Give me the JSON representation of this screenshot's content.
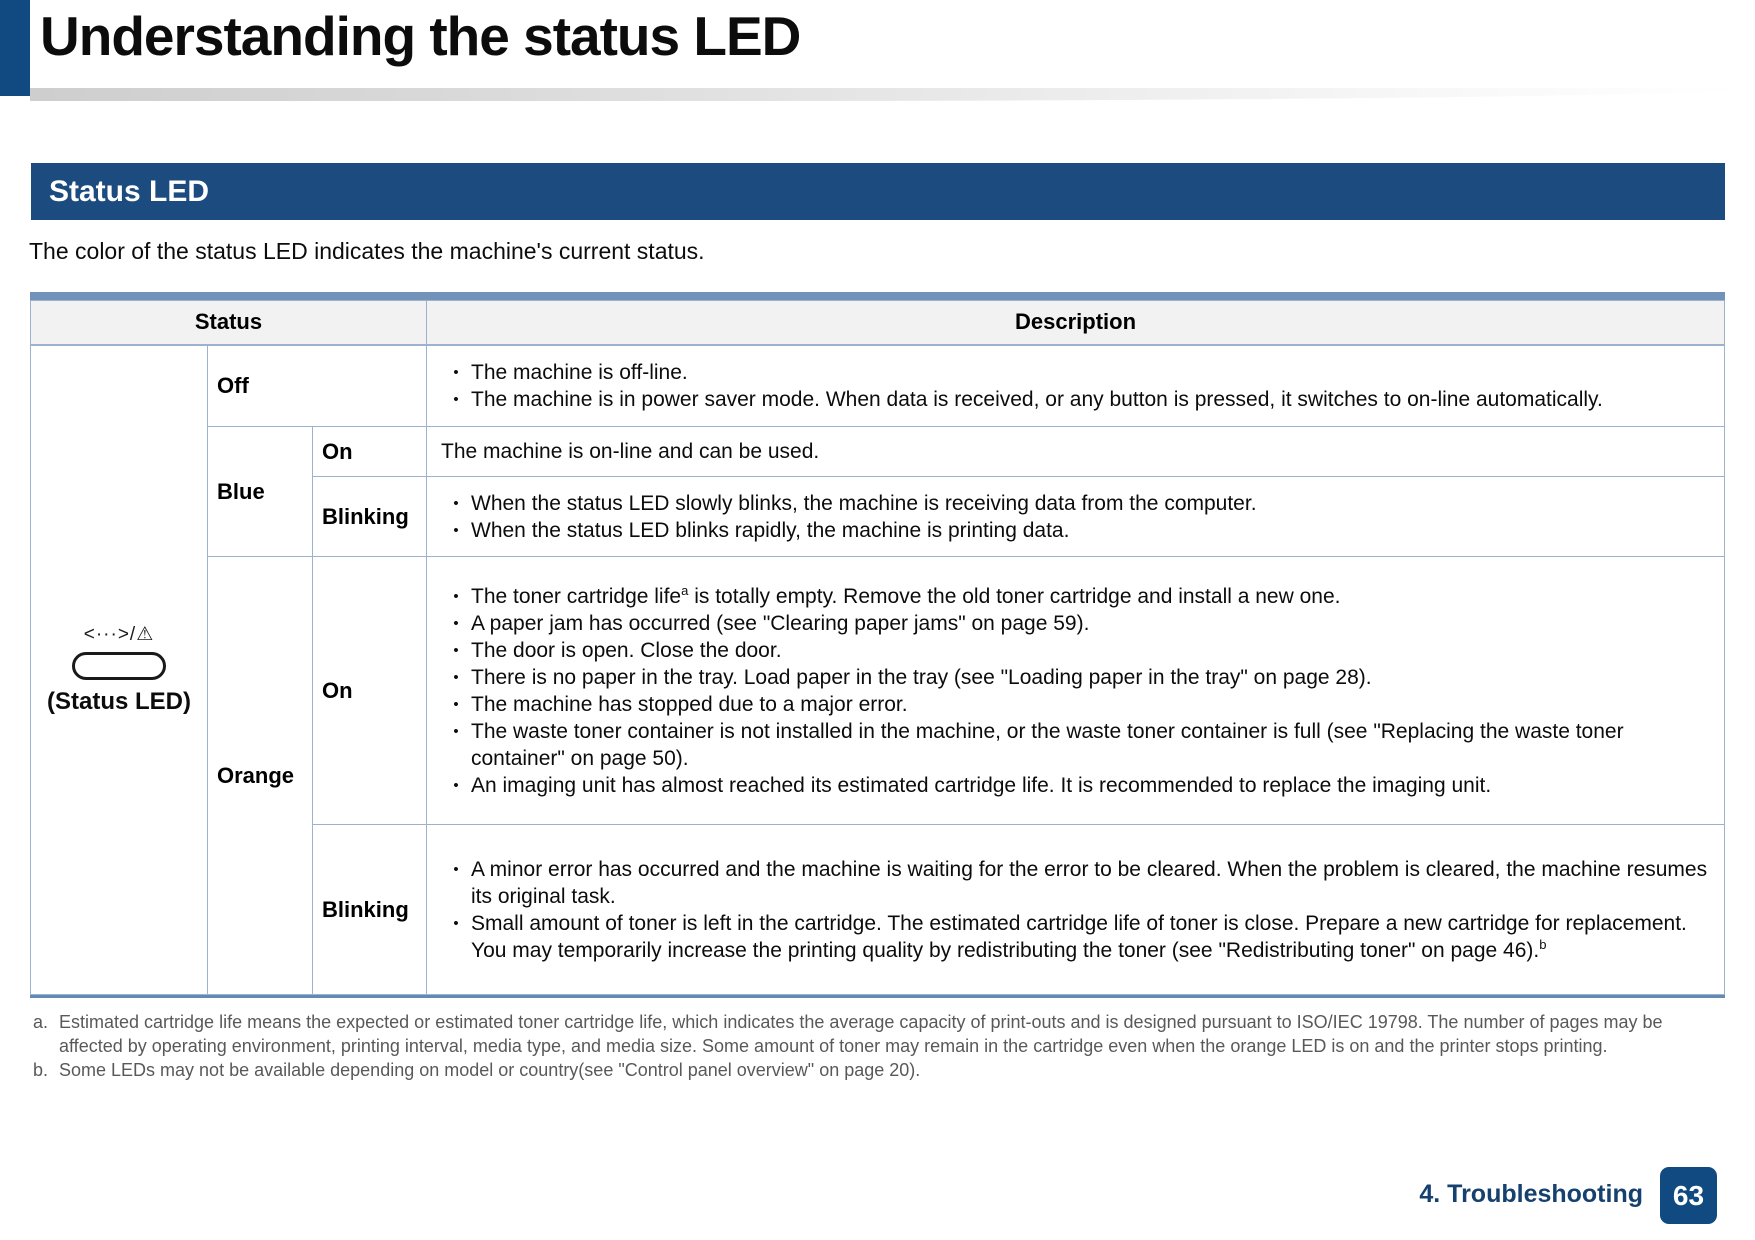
{
  "page": {
    "title": "Understanding the status LED",
    "intro": "The color of the status LED indicates the machine's current status.",
    "footer": {
      "chapter": "4. Troubleshooting",
      "page_number": "63"
    }
  },
  "section": {
    "title": "Status LED"
  },
  "led": {
    "glyph": "<···>/⚠",
    "label": "(Status LED)"
  },
  "table": {
    "header": {
      "status": "Status",
      "description": "Description"
    },
    "rows": {
      "off": {
        "label": "Off",
        "bullets": [
          "The machine is off-line.",
          "The machine is in power saver mode. When data is received, or any button is pressed, it switches to on-line automatically."
        ]
      },
      "blue": {
        "label": "Blue",
        "on": {
          "label": "On",
          "text": "The machine is on-line and can be used."
        },
        "blinking": {
          "label": "Blinking",
          "bullets": [
            "When the status LED slowly blinks, the machine is receiving data from the computer.",
            "When the status LED blinks rapidly, the machine is printing data."
          ]
        }
      },
      "orange": {
        "label": "Orange",
        "on": {
          "label": "On",
          "bullet_sup": {
            "pre": "The toner cartridge life",
            "sup": "a",
            "post": " is totally empty. Remove the old toner cartridge and install a new one."
          },
          "bullets": [
            "A paper jam has occurred (see \"Clearing paper jams\" on page 59).",
            "The door is open. Close the door.",
            "There is no paper in the tray. Load paper in the tray (see \"Loading paper in the tray\" on page 28).",
            "The machine has stopped due to a major error.",
            "The waste toner container is not installed in the machine, or the waste toner container is full (see \"Replacing the waste toner container\" on page 50).",
            "An imaging unit has almost reached its estimated cartridge life. It is recommended to replace the imaging unit."
          ]
        },
        "blinking": {
          "label": "Blinking",
          "bullets": [
            "A minor error has occurred and the machine is waiting for the error to be cleared. When the problem is cleared, the machine resumes its original task."
          ],
          "bullet_sup": {
            "pre": "Small amount of toner is left in the cartridge. The estimated cartridge life of toner is close. Prepare a new cartridge for replacement. You may temporarily increase the printing quality by redistributing the toner (see \"Redistributing toner\" on page 46).",
            "sup": "b",
            "post": ""
          }
        }
      }
    }
  },
  "footnotes": [
    {
      "marker": "a.",
      "text": "Estimated cartridge life means the expected or estimated toner cartridge life, which indicates the average capacity of print-outs and is designed pursuant to ISO/IEC 19798. The number of pages may be affected by operating environment, printing interval, media type, and media size. Some amount of toner may remain in the cartridge even when the orange LED is on and the printer stops printing."
    },
    {
      "marker": "b.",
      "text": "Some LEDs may not be available depending on model or country(see \"Control panel overview\" on page 20)."
    }
  ],
  "colors": {
    "navy": "#114a80",
    "banner": "#1c4b80",
    "border": "#9db2cd",
    "border_thick": "#7392ba",
    "header_bg": "#f2f2f2"
  }
}
